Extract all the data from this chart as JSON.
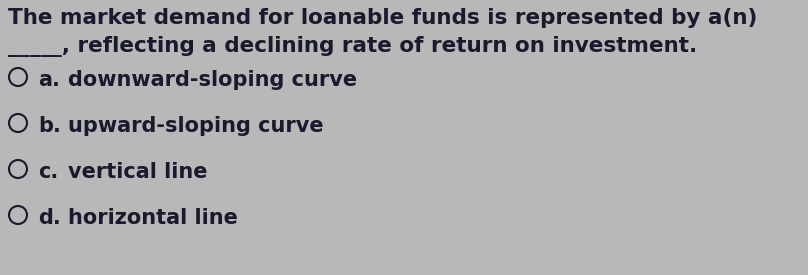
{
  "background_color": "#b8b8b8",
  "text_color": "#1a1a2e",
  "question_line1": "The market demand for loanable funds is represented by a(n)",
  "question_line2": "_____, reflecting a declining rate of return on investment.",
  "options": [
    {
      "label": "a.",
      "text": "downward-sloping curve"
    },
    {
      "label": "b.",
      "text": "upward-sloping curve"
    },
    {
      "label": "c.",
      "text": "vertical line"
    },
    {
      "label": "d.",
      "text": "horizontal line"
    }
  ],
  "font_size_question": 15.5,
  "font_size_options": 15.0,
  "figsize": [
    8.08,
    2.75
  ],
  "dpi": 100
}
